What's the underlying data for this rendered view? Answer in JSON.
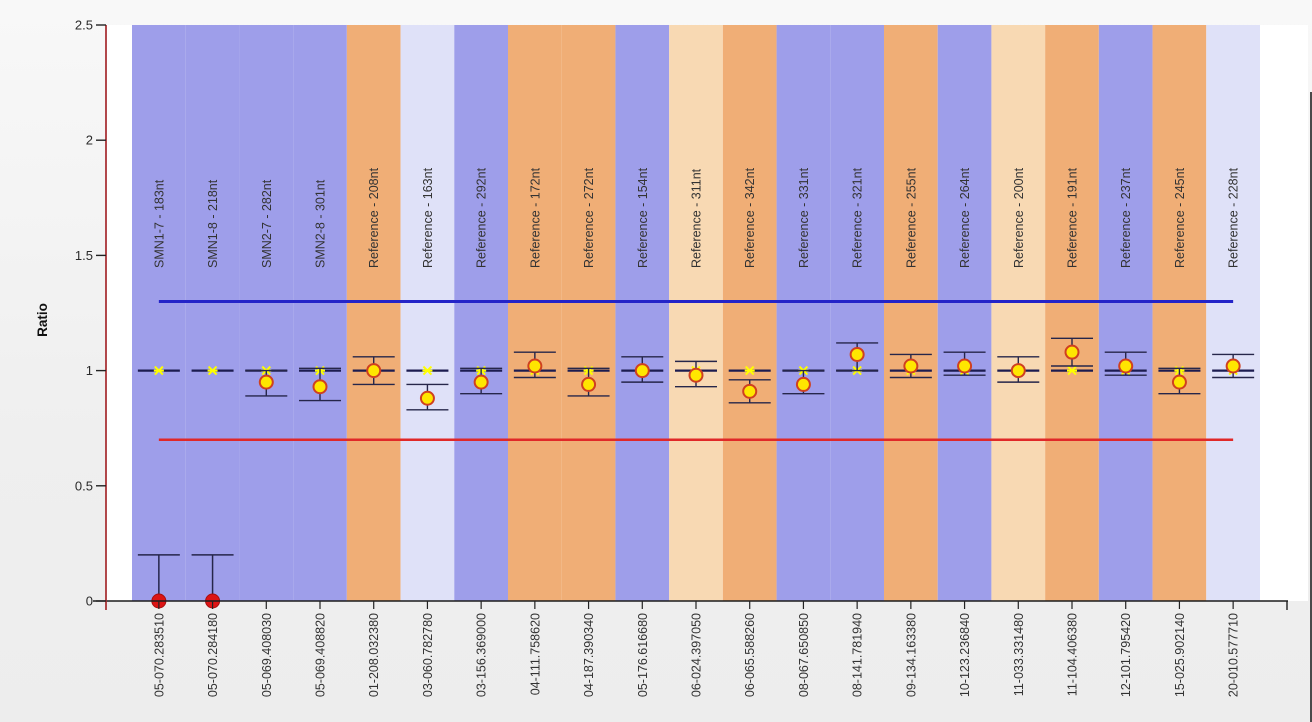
{
  "chart_data": {
    "type": "scatter",
    "title": "",
    "ylabel": "Ratio",
    "xlabel": "",
    "ylim": [
      0,
      2.5
    ],
    "ytick_values": [
      0,
      0.5,
      1,
      1.5,
      2,
      2.5
    ],
    "ytick_labels": [
      "0",
      "0.5",
      "1",
      "1.5",
      "2",
      "2.5"
    ],
    "expected_ratio": 1.0,
    "threshold_upper": 1.3,
    "threshold_lower": 0.7,
    "grid": "off",
    "legend": "none",
    "columns": [
      {
        "sample": "05-070.283510",
        "probe": "SMN1-7 - 183nt",
        "band": "blue",
        "marker": "deleted",
        "value": 0.0,
        "err_lo": 0.0,
        "err_hi": 0.2
      },
      {
        "sample": "05-070.284180",
        "probe": "SMN1-8 - 218nt",
        "band": "blue",
        "marker": "deleted",
        "value": 0.0,
        "err_lo": 0.0,
        "err_hi": 0.2
      },
      {
        "sample": "05-069.408030",
        "probe": "SMN2-7 - 282nt",
        "band": "blue",
        "marker": "normal",
        "value": 0.95,
        "err_lo": 0.89,
        "err_hi": 1.0
      },
      {
        "sample": "05-069.408820",
        "probe": "SMN2-8 - 301nt",
        "band": "blue",
        "marker": "normal",
        "value": 0.93,
        "err_lo": 0.87,
        "err_hi": 1.01
      },
      {
        "sample": "01-208.032380",
        "probe": "Reference - 208nt",
        "band": "orange",
        "marker": "normal",
        "value": 1.0,
        "err_lo": 0.94,
        "err_hi": 1.06
      },
      {
        "sample": "03-060.782780",
        "probe": "Reference - 163nt",
        "band": "lightblue",
        "marker": "normal",
        "value": 0.88,
        "err_lo": 0.83,
        "err_hi": 0.94
      },
      {
        "sample": "03-156.369000",
        "probe": "Reference - 292nt",
        "band": "blue",
        "marker": "normal",
        "value": 0.95,
        "err_lo": 0.9,
        "err_hi": 1.01
      },
      {
        "sample": "04-111.758620",
        "probe": "Reference - 172nt",
        "band": "orange",
        "marker": "normal",
        "value": 1.02,
        "err_lo": 0.97,
        "err_hi": 1.08
      },
      {
        "sample": "04-187.390340",
        "probe": "Reference - 272nt",
        "band": "orange",
        "marker": "normal",
        "value": 0.94,
        "err_lo": 0.89,
        "err_hi": 1.01
      },
      {
        "sample": "05-176.616680",
        "probe": "Reference - 154nt",
        "band": "blue",
        "marker": "normal",
        "value": 1.0,
        "err_lo": 0.95,
        "err_hi": 1.06
      },
      {
        "sample": "06-024.397050",
        "probe": "Reference - 311nt",
        "band": "lightorange",
        "marker": "normal",
        "value": 0.98,
        "err_lo": 0.93,
        "err_hi": 1.04
      },
      {
        "sample": "06-065.588260",
        "probe": "Reference - 342nt",
        "band": "orange",
        "marker": "normal",
        "value": 0.91,
        "err_lo": 0.86,
        "err_hi": 0.96
      },
      {
        "sample": "08-067.650850",
        "probe": "Reference - 331nt",
        "band": "blue",
        "marker": "normal",
        "value": 0.94,
        "err_lo": 0.9,
        "err_hi": 1.0
      },
      {
        "sample": "08-141.781940",
        "probe": "Reference - 321nt",
        "band": "blue",
        "marker": "normal",
        "value": 1.07,
        "err_lo": 1.0,
        "err_hi": 1.12
      },
      {
        "sample": "09-134.163380",
        "probe": "Reference - 255nt",
        "band": "orange",
        "marker": "normal",
        "value": 1.02,
        "err_lo": 0.97,
        "err_hi": 1.07
      },
      {
        "sample": "10-123.236840",
        "probe": "Reference - 264nt",
        "band": "blue",
        "marker": "normal",
        "value": 1.02,
        "err_lo": 0.98,
        "err_hi": 1.08
      },
      {
        "sample": "11-033.331480",
        "probe": "Reference - 200nt",
        "band": "lightorange",
        "marker": "normal",
        "value": 1.0,
        "err_lo": 0.95,
        "err_hi": 1.06
      },
      {
        "sample": "11-104.406380",
        "probe": "Reference - 191nt",
        "band": "orange",
        "marker": "normal",
        "value": 1.08,
        "err_lo": 1.02,
        "err_hi": 1.14
      },
      {
        "sample": "12-101.795420",
        "probe": "Reference - 237nt",
        "band": "blue",
        "marker": "normal",
        "value": 1.02,
        "err_lo": 0.98,
        "err_hi": 1.08
      },
      {
        "sample": "15-025.902140",
        "probe": "Reference - 245nt",
        "band": "orange",
        "marker": "normal",
        "value": 0.95,
        "err_lo": 0.9,
        "err_hi": 1.01
      },
      {
        "sample": "20-010.577710",
        "probe": "Reference - 228nt",
        "band": "lightblue",
        "marker": "normal",
        "value": 1.02,
        "err_lo": 0.97,
        "err_hi": 1.07
      }
    ],
    "colors": {
      "band_blue": "#9e9eea",
      "band_orange": "#f0ae76",
      "band_lightblue": "#dfe1f8",
      "band_lightorange": "#f8d9b3",
      "plot_background": "#ffffff",
      "threshold_upper": "#2424c8",
      "threshold_lower": "#e02828",
      "expected_line": "#1c1c50",
      "whisker": "#26264a",
      "point_fill": "#ffe600",
      "point_stroke": "#cf4020",
      "deleted_point_fill": "#dd1414",
      "deleted_point_stroke": "#a80e0e",
      "star": "#ffff00",
      "y_axis": "#a5282c",
      "x_axis": "#1c1c1c",
      "tick": "#222222",
      "label_text": "#333333"
    }
  }
}
